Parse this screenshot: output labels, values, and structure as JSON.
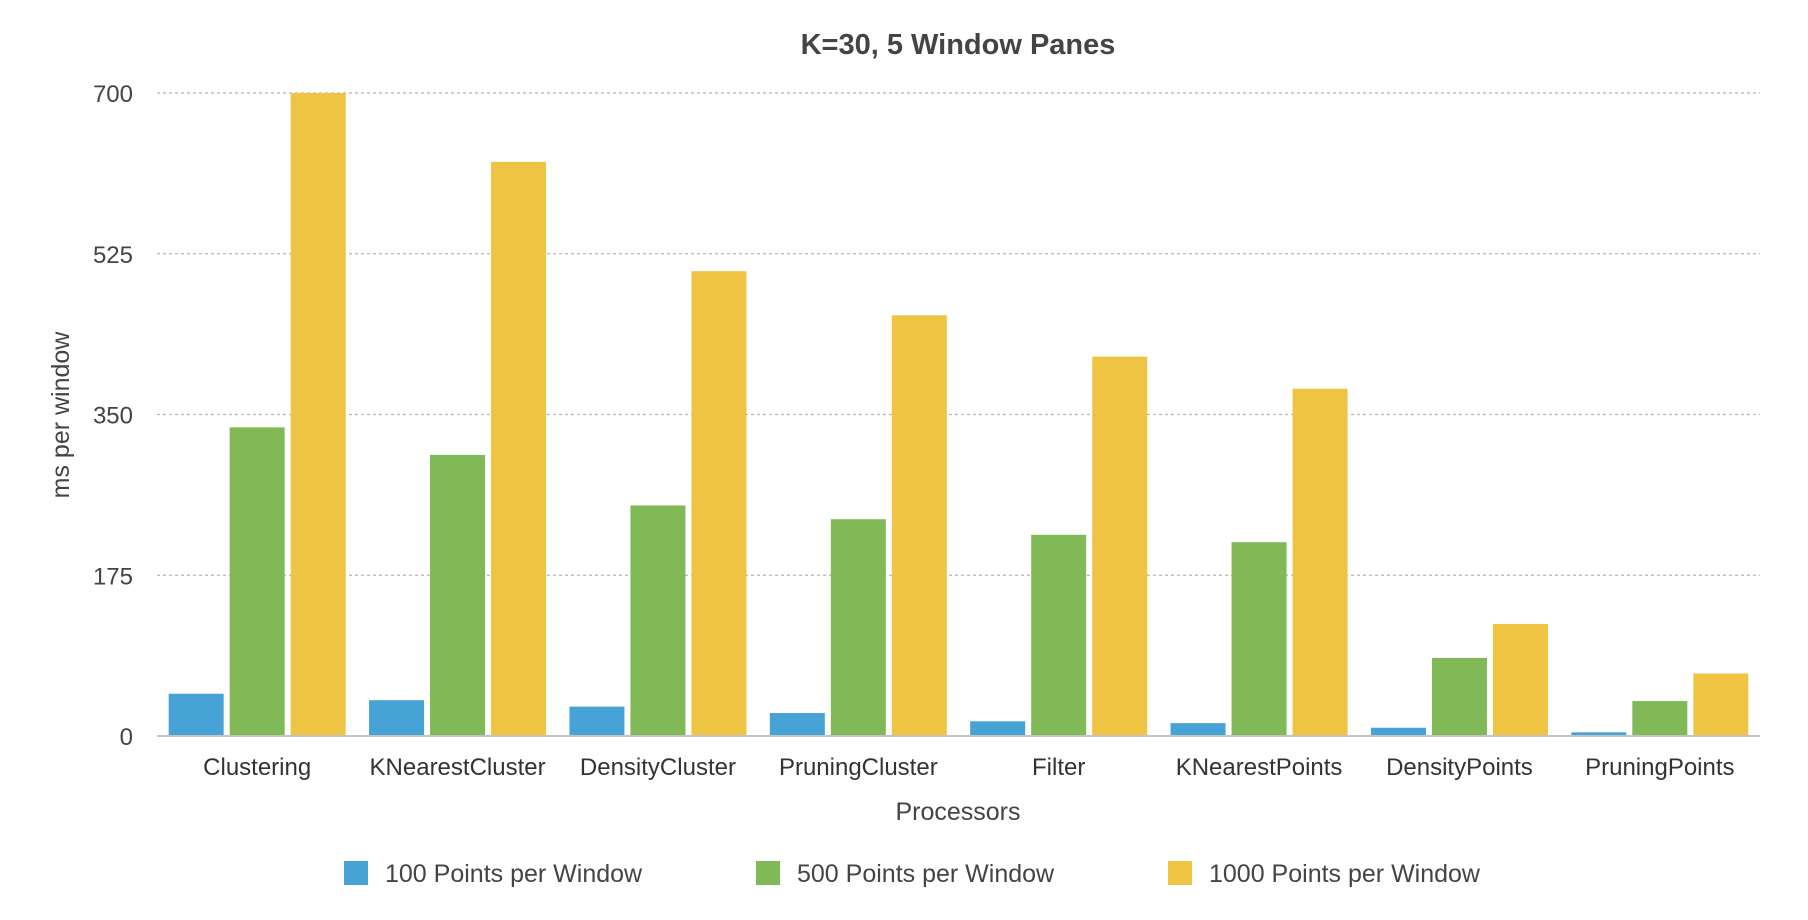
{
  "chart_data": {
    "type": "bar",
    "title": "K=30, 5 Window Panes",
    "xlabel": "Processors",
    "ylabel": "ms per window",
    "categories": [
      "Clustering",
      "KNearestCluster",
      "DensityCluster",
      "PruningCluster",
      "Filter",
      "KNearestPoints",
      "DensityPoints",
      "PruningPoints"
    ],
    "series": [
      {
        "name": "100 Points per Window",
        "color": "#47a3d6",
        "values": [
          46,
          39,
          32,
          25,
          16,
          14,
          9,
          4
        ]
      },
      {
        "name": "500 Points per Window",
        "color": "#80b955",
        "values": [
          336,
          306,
          251,
          236,
          219,
          211,
          85,
          38
        ]
      },
      {
        "name": "1000 Points per Window",
        "color": "#efc443",
        "values": [
          700,
          625,
          506,
          458,
          413,
          378,
          122,
          68
        ]
      }
    ],
    "yticks": [
      0,
      175,
      350,
      525,
      700
    ],
    "ylim": [
      0,
      700
    ],
    "grid": true,
    "legend_position": "bottom"
  }
}
